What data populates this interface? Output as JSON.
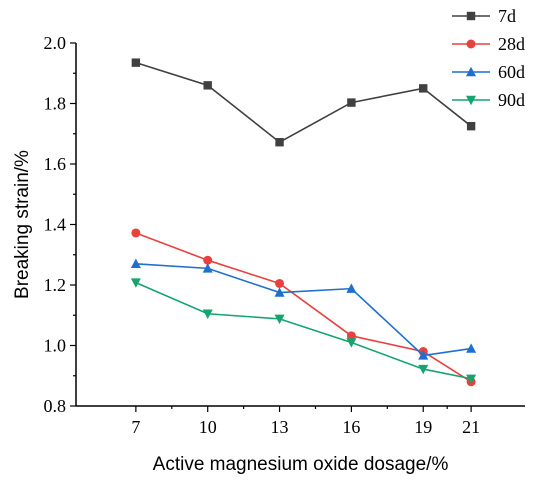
{
  "chart_data": {
    "type": "line",
    "x": [
      7,
      10,
      13,
      16,
      19,
      21
    ],
    "series": [
      {
        "name": "7d",
        "color": "#404040",
        "marker": "square",
        "values": [
          1.935,
          1.86,
          1.672,
          1.803,
          1.85,
          1.725
        ]
      },
      {
        "name": "28d",
        "color": "#e8423f",
        "marker": "circle",
        "values": [
          1.372,
          1.282,
          1.205,
          1.032,
          0.98,
          0.88
        ]
      },
      {
        "name": "60d",
        "color": "#1f6fd0",
        "marker": "triangle-up",
        "values": [
          1.27,
          1.255,
          1.175,
          1.188,
          0.967,
          0.99
        ]
      },
      {
        "name": "90d",
        "color": "#14a56e",
        "marker": "triangle-down",
        "values": [
          1.208,
          1.105,
          1.088,
          1.01,
          0.922,
          0.89
        ]
      }
    ],
    "xlabel": "Active magnesium oxide dosage/%",
    "ylabel": "Breaking strain/%",
    "xlim": [
      4.5,
      23.25
    ],
    "ylim": [
      0.8,
      2.0
    ],
    "xticks": [
      "7",
      "10",
      "13",
      "16",
      "19",
      "21"
    ],
    "yticks": [
      "0.8",
      "1.0",
      "1.2",
      "1.4",
      "1.6",
      "1.8",
      "2.0"
    ],
    "grid": false,
    "legend_position": "top-right"
  }
}
